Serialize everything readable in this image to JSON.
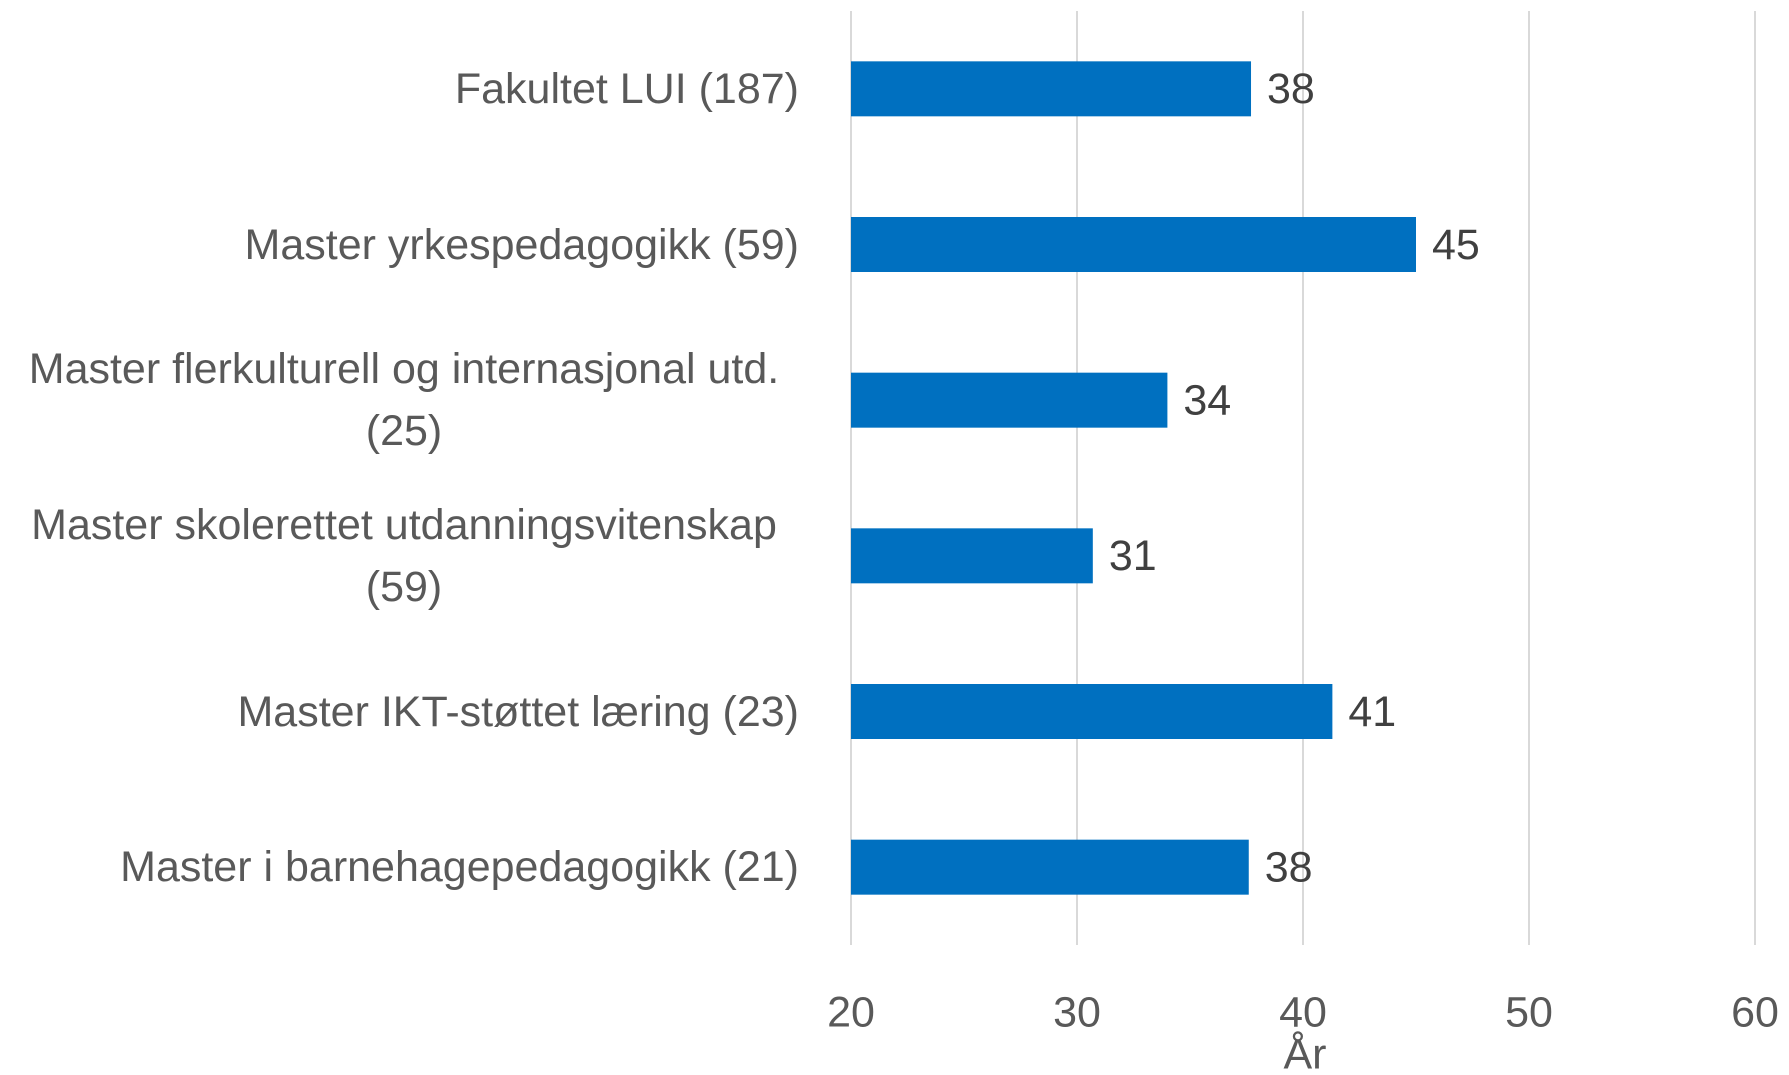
{
  "chart_data": {
    "type": "barh",
    "categories": [
      "Fakultet LUI (187)",
      "Master yrkespedagogikk (59)",
      "Master flerkulturell og internasjonal utd. (25)",
      "Master skolerettet utdanningsvitenskap (59)",
      "Master IKT-støttet læring (23)",
      "Master i barnehagepedagogikk (21)"
    ],
    "values": [
      37.7,
      45,
      34,
      30.7,
      41.3,
      37.6
    ],
    "value_labels": [
      "38",
      "45",
      "34",
      "31",
      "41",
      "38"
    ],
    "color": "#0070c0",
    "xlabel": "År",
    "xlim": [
      20,
      60
    ],
    "xticks": [
      20,
      30,
      40,
      50,
      60
    ],
    "grid": true
  }
}
